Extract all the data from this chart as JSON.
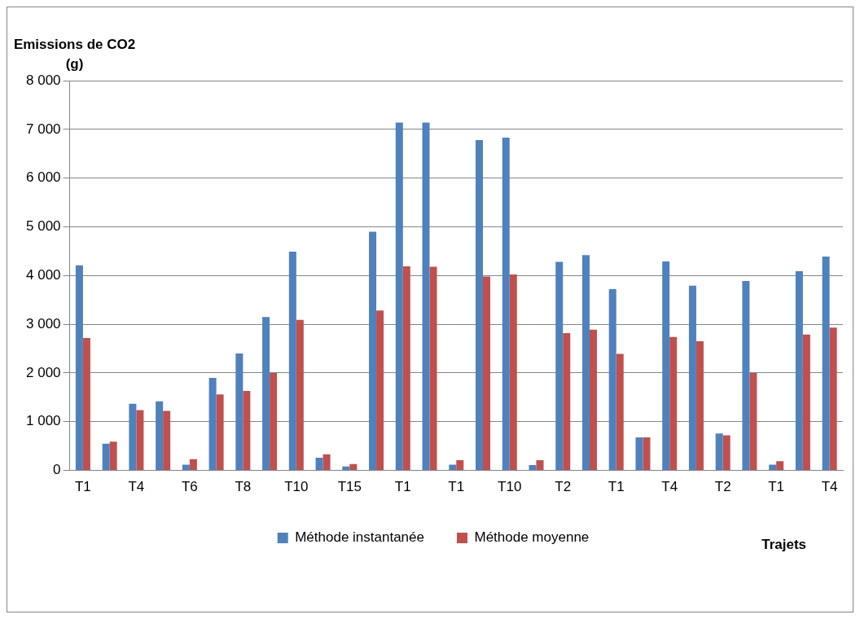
{
  "chart_data": {
    "type": "bar",
    "ylabel": "Emissions de CO2 (g)",
    "xlabel": "Trajets",
    "categories": [
      "T1",
      null,
      "T4",
      null,
      "T6",
      null,
      "T8",
      null,
      "T10",
      null,
      "T15",
      null,
      "T1",
      null,
      "T1",
      null,
      "T10",
      null,
      "T2",
      null,
      "T1",
      null,
      "T4",
      null,
      "T2",
      null,
      "T1",
      null,
      "T4"
    ],
    "series": [
      {
        "name": "Méthode instantanée",
        "color": "#4f81bd",
        "values": [
          4210,
          550,
          1370,
          1420,
          120,
          1900,
          2400,
          3150,
          4490,
          260,
          80,
          4900,
          7140,
          7140,
          120,
          6780,
          6830,
          110,
          4280,
          4420,
          3720,
          680,
          4290,
          3790,
          760,
          3890,
          120,
          4090,
          4390
        ]
      },
      {
        "name": "Méthode moyenne",
        "color": "#c0504d",
        "values": [
          2720,
          590,
          1240,
          1220,
          230,
          1560,
          1630,
          2000,
          3090,
          330,
          130,
          3280,
          4190,
          4180,
          210,
          3980,
          4020,
          210,
          2820,
          2890,
          2390,
          680,
          2740,
          2650,
          720,
          2000,
          190,
          2790,
          2930
        ]
      }
    ],
    "ylim": [
      0,
      8000
    ],
    "yticks": [
      {
        "value": 0,
        "label": "0"
      },
      {
        "value": 1000,
        "label": "1 000"
      },
      {
        "value": 2000,
        "label": "2 000"
      },
      {
        "value": 3000,
        "label": "3 000"
      },
      {
        "value": 4000,
        "label": "4 000"
      },
      {
        "value": 5000,
        "label": "5 000"
      },
      {
        "value": 6000,
        "label": "6 000"
      },
      {
        "value": 7000,
        "label": "7 000"
      },
      {
        "value": 8000,
        "label": "8 000"
      }
    ],
    "grid": "y",
    "legend": "bottom"
  }
}
